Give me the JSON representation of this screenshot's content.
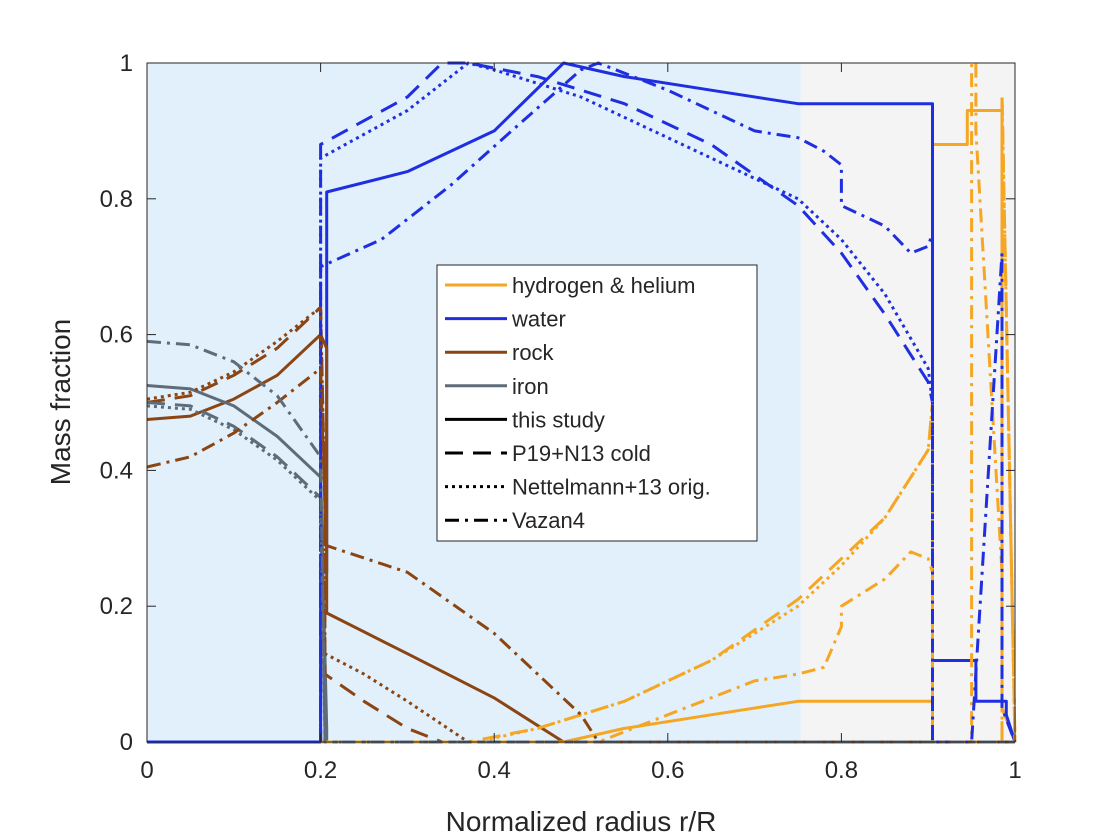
{
  "chart_data": {
    "type": "line",
    "title": "",
    "xlabel": "Normalized radius r/R",
    "ylabel": "Mass fraction",
    "xlim": [
      0,
      1
    ],
    "ylim": [
      0,
      1
    ],
    "xticks": [
      0,
      0.2,
      0.4,
      0.6,
      0.8,
      1
    ],
    "yticks": [
      0,
      0.2,
      0.4,
      0.6,
      0.8,
      1
    ],
    "xtick_labels": [
      "0",
      "0.2",
      "0.4",
      "0.6",
      "0.8",
      "1"
    ],
    "ytick_labels": [
      "0",
      "0.2",
      "0.4",
      "0.6",
      "0.8",
      "1"
    ],
    "grid": false,
    "legend_position": "center",
    "colors": {
      "hhe": "#f5a623",
      "water": "#1f2fe0",
      "rock": "#8b4513",
      "iron": "#5e6b78",
      "bg_blue": "#e1f0fb",
      "bg_gray": "#f4f4f4"
    },
    "background_regions": [
      {
        "name": "shaded-region-blue",
        "x": [
          0,
          0.753
        ],
        "color": "#e1f0fb"
      },
      {
        "name": "shaded-region-gray",
        "x": [
          0.753,
          1
        ],
        "color": "#f4f4f4"
      }
    ],
    "legend": [
      {
        "label": "hydrogen & helium",
        "color": "#f5a623",
        "dash": "solid"
      },
      {
        "label": "water",
        "color": "#1f2fe0",
        "dash": "solid"
      },
      {
        "label": "rock",
        "color": "#8b4513",
        "dash": "solid"
      },
      {
        "label": "iron",
        "color": "#5e6b78",
        "dash": "solid"
      },
      {
        "label": "this study",
        "color": "#000000",
        "dash": "solid"
      },
      {
        "label": "P19+N13 cold",
        "color": "#000000",
        "dash": "dashed"
      },
      {
        "label": "Nettelmann+13 orig.",
        "color": "#000000",
        "dash": "dotted"
      },
      {
        "label": "Vazan4",
        "color": "#000000",
        "dash": "dashdot"
      }
    ],
    "series": [
      {
        "name": "hhe-this-study",
        "component": "hydrogen & helium",
        "model": "this study",
        "color": "#f5a623",
        "dash": "solid",
        "x": [
          0,
          0.48,
          0.55,
          0.65,
          0.75,
          0.905,
          0.905,
          0.945,
          0.945,
          0.955,
          0.955,
          0.985,
          0.985,
          1
        ],
        "y": [
          0,
          0,
          0.02,
          0.04,
          0.06,
          0.06,
          0.88,
          0.88,
          0.93,
          0.93,
          0.93,
          0.93,
          0.05,
          0
        ]
      },
      {
        "name": "water-this-study",
        "component": "water",
        "model": "this study",
        "color": "#1f2fe0",
        "dash": "solid",
        "x": [
          0,
          0.2,
          0.2,
          0.207,
          0.207,
          0.3,
          0.4,
          0.48,
          0.55,
          0.65,
          0.75,
          0.905,
          0.905,
          0.955,
          0.955,
          0.99,
          0.99,
          1
        ],
        "y": [
          0,
          0,
          0.25,
          0.25,
          0.81,
          0.84,
          0.9,
          1,
          0.98,
          0.96,
          0.94,
          0.94,
          0.12,
          0.12,
          0.06,
          0.06,
          0.04,
          0
        ]
      },
      {
        "name": "rock-this-study",
        "component": "rock",
        "model": "this study",
        "color": "#8b4513",
        "dash": "solid",
        "x": [
          0,
          0.05,
          0.1,
          0.15,
          0.2,
          0.2,
          0.207,
          0.207,
          0.3,
          0.4,
          0.48,
          0.48,
          1
        ],
        "y": [
          0.475,
          0.48,
          0.505,
          0.54,
          0.6,
          0.6,
          0.58,
          0.19,
          0.13,
          0.065,
          0,
          0,
          0
        ]
      },
      {
        "name": "iron-this-study",
        "component": "iron",
        "model": "this study",
        "color": "#5e6b78",
        "dash": "solid",
        "x": [
          0,
          0.05,
          0.1,
          0.15,
          0.2,
          0.2,
          0.207,
          0.207,
          1
        ],
        "y": [
          0.525,
          0.52,
          0.495,
          0.45,
          0.39,
          0.39,
          0.02,
          0,
          0
        ]
      },
      {
        "name": "hhe-p19",
        "component": "hydrogen & helium",
        "model": "P19+N13 cold",
        "color": "#f5a623",
        "dash": "dashed",
        "x": [
          0,
          0.37,
          0.45,
          0.55,
          0.65,
          0.75,
          0.85,
          0.9,
          0.905,
          0.905,
          0.985,
          0.985,
          1
        ],
        "y": [
          0,
          0,
          0.02,
          0.06,
          0.12,
          0.21,
          0.33,
          0.43,
          0.5,
          0,
          0,
          0.95,
          0
        ]
      },
      {
        "name": "water-p19",
        "component": "water",
        "model": "P19+N13 cold",
        "color": "#1f2fe0",
        "dash": "dashed",
        "x": [
          0,
          0.2,
          0.2,
          0.2,
          0.3,
          0.34,
          0.37,
          0.45,
          0.55,
          0.65,
          0.75,
          0.8,
          0.85,
          0.9,
          0.905,
          0.905,
          1
        ],
        "y": [
          0,
          0,
          0.25,
          0.88,
          0.95,
          1,
          1,
          0.98,
          0.94,
          0.88,
          0.79,
          0.72,
          0.63,
          0.53,
          0.5,
          0,
          0
        ]
      },
      {
        "name": "rock-p19",
        "component": "rock",
        "model": "P19+N13 cold",
        "color": "#8b4513",
        "dash": "dashed",
        "x": [
          0,
          0.05,
          0.1,
          0.15,
          0.2,
          0.2,
          0.205,
          0.205,
          0.25,
          0.3,
          0.34,
          0.34,
          1
        ],
        "y": [
          0.5,
          0.51,
          0.54,
          0.58,
          0.64,
          0.64,
          0.35,
          0.1,
          0.06,
          0.02,
          0,
          0,
          0
        ]
      },
      {
        "name": "iron-p19",
        "component": "iron",
        "model": "P19+N13 cold",
        "color": "#5e6b78",
        "dash": "dashed",
        "x": [
          0,
          0.05,
          0.1,
          0.15,
          0.2,
          0.2,
          0.205,
          0.205,
          1
        ],
        "y": [
          0.5,
          0.495,
          0.465,
          0.42,
          0.36,
          0.36,
          0.02,
          0,
          0
        ]
      },
      {
        "name": "hhe-n13",
        "component": "hydrogen & helium",
        "model": "Nettelmann+13 orig.",
        "color": "#f5a623",
        "dash": "dotted",
        "x": [
          0,
          0.38,
          0.45,
          0.55,
          0.65,
          0.75,
          0.8,
          0.85,
          0.9,
          0.905,
          0.905,
          0.985,
          0.985,
          1
        ],
        "y": [
          0,
          0,
          0.02,
          0.06,
          0.12,
          0.2,
          0.26,
          0.33,
          0.43,
          0.5,
          0,
          0,
          0.95,
          0
        ]
      },
      {
        "name": "water-n13",
        "component": "water",
        "model": "Nettelmann+13 orig.",
        "color": "#1f2fe0",
        "dash": "dotted",
        "x": [
          0,
          0.2,
          0.2,
          0.2,
          0.3,
          0.37,
          0.4,
          0.5,
          0.6,
          0.7,
          0.75,
          0.8,
          0.85,
          0.9,
          0.905,
          0.905,
          1
        ],
        "y": [
          0,
          0,
          0.25,
          0.86,
          0.93,
          1,
          0.99,
          0.95,
          0.89,
          0.83,
          0.8,
          0.74,
          0.66,
          0.55,
          0.5,
          0,
          0
        ]
      },
      {
        "name": "rock-n13",
        "component": "rock",
        "model": "Nettelmann+13 orig.",
        "color": "#8b4513",
        "dash": "dotted",
        "x": [
          0,
          0.05,
          0.1,
          0.15,
          0.2,
          0.2,
          0.205,
          0.205,
          0.25,
          0.3,
          0.37,
          0.37,
          1
        ],
        "y": [
          0.505,
          0.515,
          0.545,
          0.59,
          0.64,
          0.64,
          0.35,
          0.13,
          0.1,
          0.06,
          0,
          0,
          0
        ]
      },
      {
        "name": "iron-n13",
        "component": "iron",
        "model": "Nettelmann+13 orig.",
        "color": "#5e6b78",
        "dash": "dotted",
        "x": [
          0,
          0.05,
          0.1,
          0.15,
          0.2,
          0.2,
          0.205,
          0.205,
          1
        ],
        "y": [
          0.495,
          0.49,
          0.46,
          0.415,
          0.355,
          0.355,
          0.02,
          0,
          0
        ]
      },
      {
        "name": "hhe-vazan4",
        "component": "hydrogen & helium",
        "model": "Vazan4",
        "color": "#f5a623",
        "dash": "dashdot",
        "x": [
          0,
          0.52,
          0.6,
          0.7,
          0.75,
          0.78,
          0.8,
          0.8,
          0.85,
          0.88,
          0.9,
          0.905,
          0.905,
          0.95,
          0.95,
          0.955,
          0.955,
          0.985,
          0.985,
          1
        ],
        "y": [
          0,
          0,
          0.04,
          0.09,
          0.1,
          0.11,
          0.17,
          0.2,
          0.24,
          0.28,
          0.27,
          0.25,
          0,
          0,
          1,
          1,
          0.9,
          0.25,
          0.95,
          0
        ]
      },
      {
        "name": "water-vazan4",
        "component": "water",
        "model": "Vazan4",
        "color": "#1f2fe0",
        "dash": "dashdot",
        "x": [
          0,
          0.2,
          0.2,
          0.2,
          0.27,
          0.35,
          0.42,
          0.5,
          0.52,
          0.6,
          0.7,
          0.75,
          0.78,
          0.8,
          0.8,
          0.85,
          0.88,
          0.9,
          0.905,
          0.905,
          0.95,
          0.985,
          0.985,
          1
        ],
        "y": [
          0,
          0,
          0.25,
          0.7,
          0.74,
          0.82,
          0.9,
          0.99,
          1,
          0.96,
          0.9,
          0.89,
          0.87,
          0.85,
          0.79,
          0.76,
          0.72,
          0.73,
          0.75,
          0,
          0,
          0.72,
          0.05,
          0
        ]
      },
      {
        "name": "rock-vazan4",
        "component": "rock",
        "model": "Vazan4",
        "color": "#8b4513",
        "dash": "dashdot",
        "x": [
          0,
          0.05,
          0.1,
          0.15,
          0.2,
          0.2,
          0.205,
          0.205,
          0.3,
          0.4,
          0.5,
          0.52,
          0.52,
          1
        ],
        "y": [
          0.405,
          0.42,
          0.455,
          0.5,
          0.55,
          0.55,
          0.35,
          0.29,
          0.25,
          0.16,
          0.04,
          0,
          0,
          0
        ]
      },
      {
        "name": "iron-vazan4",
        "component": "iron",
        "model": "Vazan4",
        "color": "#5e6b78",
        "dash": "dashdot",
        "x": [
          0,
          0.05,
          0.1,
          0.15,
          0.2,
          0.2,
          0.205,
          0.205,
          1
        ],
        "y": [
          0.59,
          0.585,
          0.56,
          0.51,
          0.42,
          0.42,
          0.02,
          0,
          0
        ]
      }
    ]
  }
}
